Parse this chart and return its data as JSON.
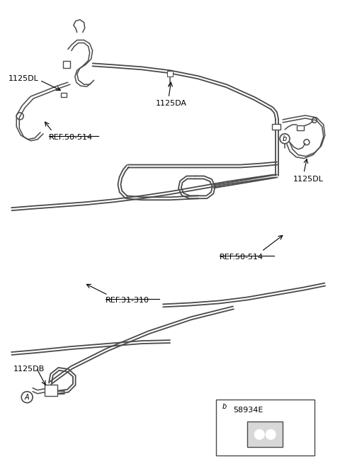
{
  "bg_color": "#ffffff",
  "line_color": "#4a4a4a",
  "text_color": "#000000",
  "lw_tube": 1.3,
  "lw_hose": 1.1,
  "labels": {
    "top_left_part": "1125DL",
    "top_ref": "REF.50-514",
    "mid_label": "1125DA",
    "right_part": "1125DL",
    "right_ref": "REF.50-514",
    "center_ref": "REF.31-310",
    "bottom_part": "1125DB",
    "legend_part": "58934E",
    "callout_b": "b",
    "callout_a": "A"
  },
  "figsize": [
    4.8,
    6.55
  ],
  "dpi": 100
}
